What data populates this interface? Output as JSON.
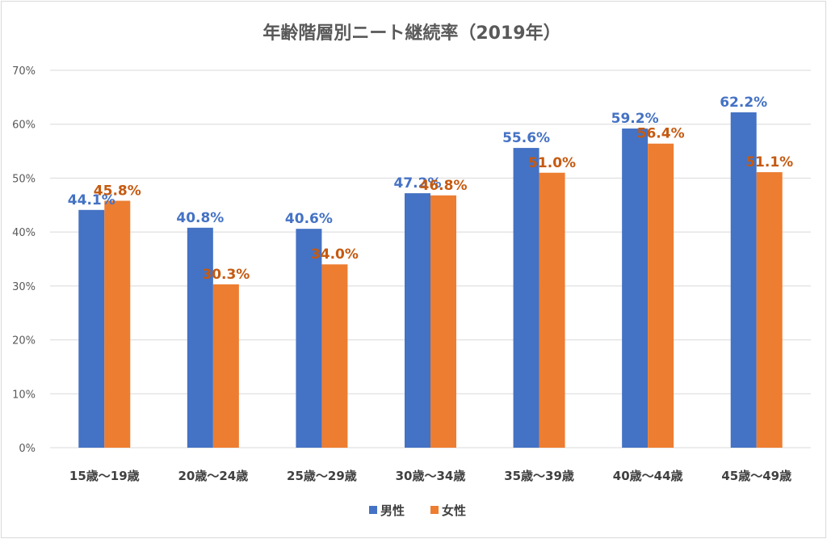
{
  "chart_data": {
    "type": "bar",
    "title": "年齢階層別ニート継続率（2019年）",
    "categories": [
      "15歳～19歳",
      "20歳～24歳",
      "25歳～29歳",
      "30歳～34歳",
      "35歳～39歳",
      "40歳～44歳",
      "45歳～49歳"
    ],
    "series": [
      {
        "name": "男性",
        "color": "#4472c4",
        "values": [
          44.1,
          40.8,
          40.6,
          47.2,
          55.6,
          59.2,
          62.2
        ],
        "labels": [
          "44.1%",
          "40.8%",
          "40.6%",
          "47.2%",
          "55.6%",
          "59.2%",
          "62.2%"
        ]
      },
      {
        "name": "女性",
        "color": "#ed7d31",
        "values": [
          45.8,
          30.3,
          34.0,
          46.8,
          51.0,
          56.4,
          51.1
        ],
        "labels": [
          "45.8%",
          "30.3%",
          "34.0%",
          "46.8%",
          "51.0%",
          "56.4%",
          "51.1%"
        ]
      }
    ],
    "ylim": [
      0,
      70
    ],
    "yticks": [
      0,
      10,
      20,
      30,
      40,
      50,
      60,
      70
    ],
    "ytick_labels": [
      "0%",
      "10%",
      "20%",
      "30%",
      "40%",
      "50%",
      "60%",
      "70%"
    ],
    "grid": true,
    "legend_position": "bottom",
    "data_label_colors": {
      "男性": "#4472c4",
      "女性": "#c55a11"
    },
    "gridline_color": "#d9d9d9"
  }
}
